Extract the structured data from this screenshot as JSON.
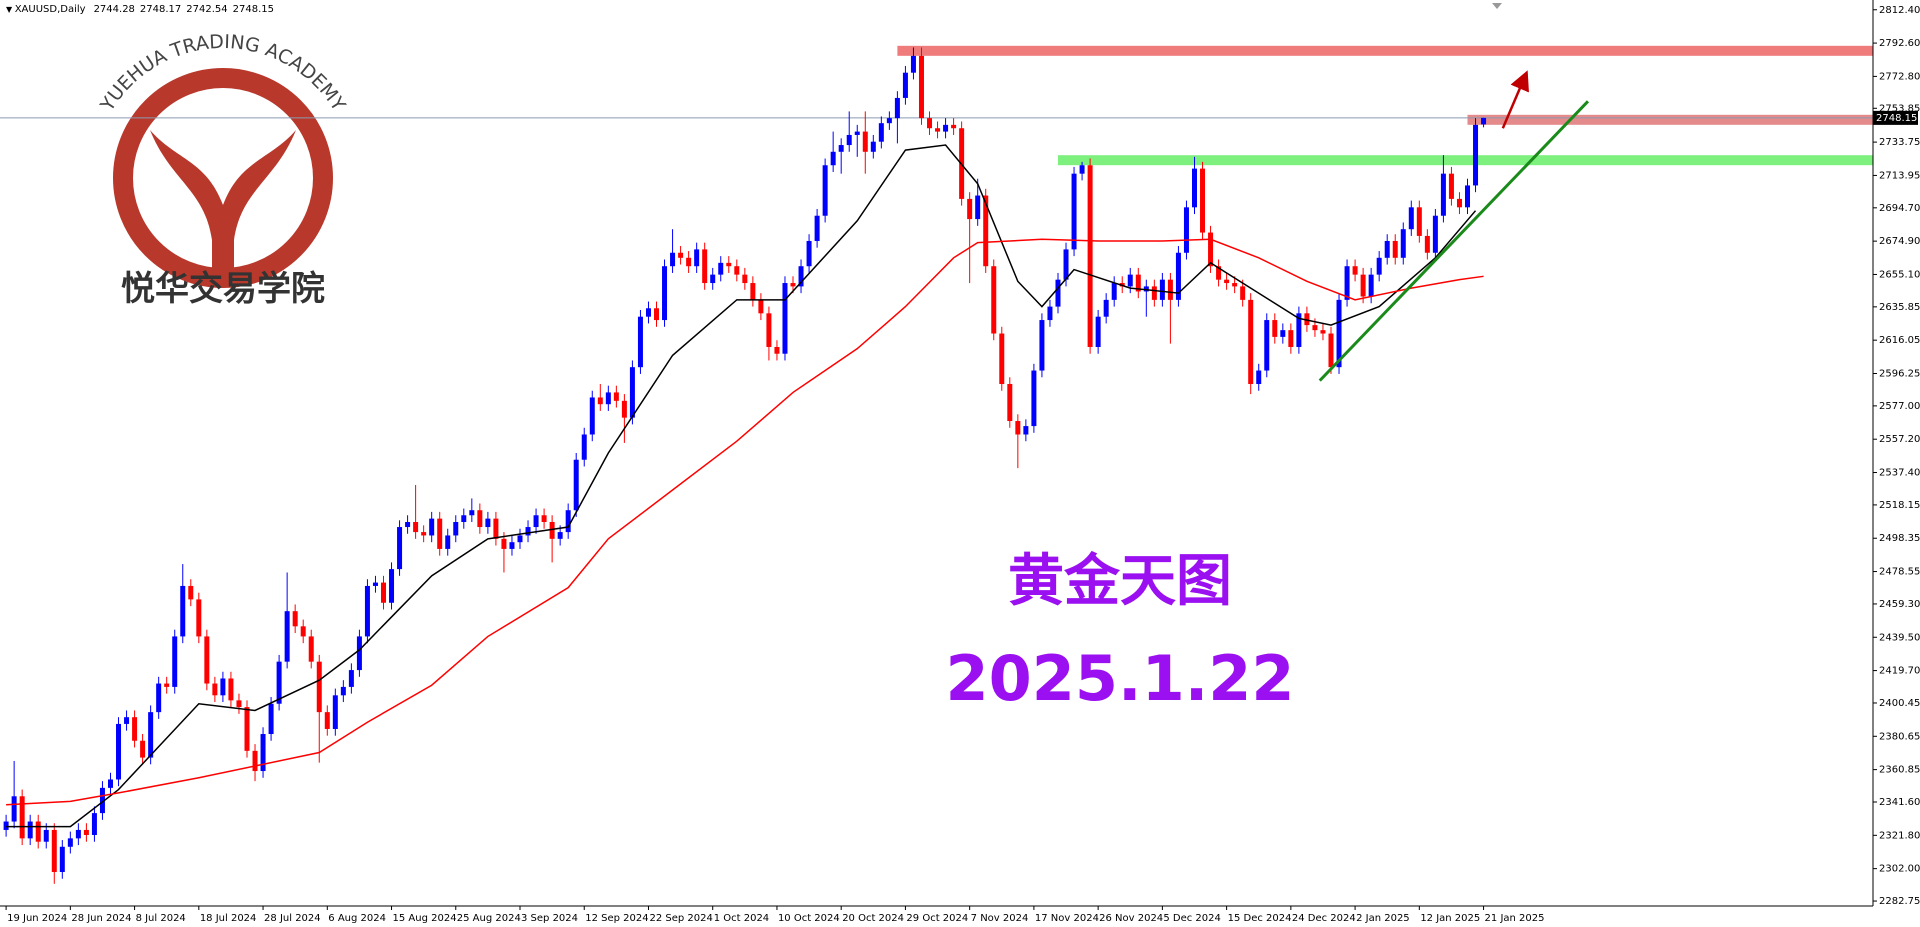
{
  "chart_data": {
    "type": "candlestick",
    "title": "XAUUSD,Daily",
    "up_color": "#0000ff",
    "down_color": "#ff0000",
    "ylim": [
      2279.8,
      2818.2
    ],
    "xlim": [
      -0.76,
      232.5
    ],
    "yticks": [
      {
        "value": 2812.4,
        "label": "2812.40"
      },
      {
        "value": 2792.6,
        "label": "2792.60"
      },
      {
        "value": 2772.8,
        "label": "2772.80"
      },
      2753.85,
      2733.75,
      2713.95,
      {
        "value": 2694.7,
        "label": "2694.70"
      },
      {
        "value": 2674.9,
        "label": "2674.90"
      },
      {
        "value": 2655.1,
        "label": "2655.10"
      },
      2635.85,
      2616.05,
      2596.25,
      {
        "value": 2577.0,
        "label": "2577.00"
      },
      {
        "value": 2557.2,
        "label": "2557.20"
      },
      {
        "value": 2537.4,
        "label": "2537.40"
      },
      2518.15,
      2498.35,
      2478.55,
      {
        "value": 2459.3,
        "label": "2459.30"
      },
      {
        "value": 2439.5,
        "label": "2439.50"
      },
      {
        "value": 2419.7,
        "label": "2419.70"
      },
      2400.45,
      2380.65,
      2360.85,
      {
        "value": 2341.6,
        "label": "2341.60"
      },
      {
        "value": 2321.8,
        "label": "2321.80"
      },
      {
        "value": 2302.0,
        "label": "2302.00"
      },
      2282.75
    ],
    "xticks": [
      {
        "value": 0,
        "label": "19 Jun 2024"
      },
      {
        "value": 8,
        "label": "28 Jun 2024"
      },
      {
        "value": 16,
        "label": "8 Jul 2024"
      },
      {
        "value": 24,
        "label": "18 Jul 2024"
      },
      {
        "value": 32,
        "label": "28 Jul 2024"
      },
      {
        "value": 40,
        "label": "6 Aug 2024"
      },
      {
        "value": 48,
        "label": "15 Aug 2024"
      },
      {
        "value": 56,
        "label": "25 Aug 2024"
      },
      {
        "value": 64,
        "label": "3 Sep 2024"
      },
      {
        "value": 72,
        "label": "12 Sep 2024"
      },
      {
        "value": 80,
        "label": "22 Sep 2024"
      },
      {
        "value": 88,
        "label": "1 Oct 2024"
      },
      {
        "value": 96,
        "label": "10 Oct 2024"
      },
      {
        "value": 104,
        "label": "20 Oct 2024"
      },
      {
        "value": 112,
        "label": "29 Oct 2024"
      },
      {
        "value": 120,
        "label": "7 Nov 2024"
      },
      {
        "value": 128,
        "label": "17 Nov 2024"
      },
      {
        "value": 136,
        "label": "26 Nov 2024"
      },
      {
        "value": 144,
        "label": "5 Dec 2024"
      },
      {
        "value": 152,
        "label": "15 Dec 2024"
      },
      {
        "value": 160,
        "label": "24 Dec 2024"
      },
      {
        "value": 168,
        "label": "2 Jan 2025"
      },
      {
        "value": 176,
        "label": "12 Jan 2025"
      },
      {
        "value": 184,
        "label": "21 Jan 2025"
      }
    ],
    "ohlc": [
      [
        2325,
        2334,
        2321,
        2330
      ],
      [
        2330,
        2366,
        2326,
        2345
      ],
      [
        2345,
        2349,
        2316,
        2320
      ],
      [
        2320,
        2334,
        2316,
        2330
      ],
      [
        2330,
        2334,
        2314,
        2318
      ],
      [
        2318,
        2329,
        2314,
        2325
      ],
      [
        2325,
        2329,
        2293,
        2300
      ],
      [
        2300,
        2319,
        2296,
        2315
      ],
      [
        2315,
        2324,
        2311,
        2320
      ],
      [
        2320,
        2329,
        2316,
        2325
      ],
      [
        2325,
        2329,
        2318,
        2322
      ],
      [
        2322,
        2339,
        2318,
        2335
      ],
      [
        2335,
        2354,
        2331,
        2350
      ],
      [
        2350,
        2359,
        2346,
        2355
      ],
      [
        2355,
        2392,
        2351,
        2388
      ],
      [
        2388,
        2396,
        2384,
        2392
      ],
      [
        2392,
        2396,
        2374,
        2378
      ],
      [
        2378,
        2382,
        2364,
        2368
      ],
      [
        2368,
        2399,
        2364,
        2395
      ],
      [
        2395,
        2416,
        2391,
        2412
      ],
      [
        2412,
        2416,
        2406,
        2410
      ],
      [
        2410,
        2444,
        2406,
        2440
      ],
      [
        2440,
        2483,
        2436,
        2470
      ],
      [
        2470,
        2474,
        2458,
        2462
      ],
      [
        2462,
        2466,
        2436,
        2440
      ],
      [
        2440,
        2444,
        2408,
        2412
      ],
      [
        2412,
        2416,
        2401,
        2405
      ],
      [
        2405,
        2419,
        2401,
        2415
      ],
      [
        2415,
        2419,
        2398,
        2402
      ],
      [
        2402,
        2406,
        2394,
        2398
      ],
      [
        2398,
        2402,
        2368,
        2372
      ],
      [
        2372,
        2376,
        2354,
        2360
      ],
      [
        2360,
        2386,
        2356,
        2382
      ],
      [
        2382,
        2404,
        2378,
        2400
      ],
      [
        2400,
        2429,
        2396,
        2425
      ],
      [
        2425,
        2478,
        2421,
        2455
      ],
      [
        2455,
        2459,
        2442,
        2446
      ],
      [
        2446,
        2450,
        2436,
        2440
      ],
      [
        2440,
        2444,
        2421,
        2425
      ],
      [
        2425,
        2429,
        2365,
        2395
      ],
      [
        2395,
        2399,
        2381,
        2385
      ],
      [
        2385,
        2409,
        2381,
        2405
      ],
      [
        2405,
        2414,
        2401,
        2410
      ],
      [
        2410,
        2424,
        2406,
        2420
      ],
      [
        2420,
        2444,
        2416,
        2440
      ],
      [
        2440,
        2474,
        2436,
        2470
      ],
      [
        2470,
        2476,
        2466,
        2472
      ],
      [
        2472,
        2476,
        2456,
        2460
      ],
      [
        2460,
        2484,
        2456,
        2480
      ],
      [
        2480,
        2509,
        2476,
        2505
      ],
      [
        2505,
        2512,
        2501,
        2508
      ],
      [
        2508,
        2530,
        2498,
        2502
      ],
      [
        2502,
        2506,
        2496,
        2500
      ],
      [
        2500,
        2514,
        2496,
        2510
      ],
      [
        2510,
        2514,
        2488,
        2492
      ],
      [
        2492,
        2504,
        2488,
        2500
      ],
      [
        2500,
        2512,
        2496,
        2508
      ],
      [
        2508,
        2516,
        2504,
        2512
      ],
      [
        2512,
        2522,
        2508,
        2515
      ],
      [
        2515,
        2519,
        2501,
        2505
      ],
      [
        2505,
        2514,
        2501,
        2510
      ],
      [
        2510,
        2514,
        2494,
        2498
      ],
      [
        2498,
        2502,
        2478,
        2492
      ],
      [
        2492,
        2500,
        2488,
        2496
      ],
      [
        2496,
        2504,
        2492,
        2500
      ],
      [
        2500,
        2509,
        2496,
        2505
      ],
      [
        2505,
        2516,
        2501,
        2512
      ],
      [
        2512,
        2516,
        2504,
        2508
      ],
      [
        2508,
        2512,
        2484,
        2498
      ],
      [
        2498,
        2506,
        2494,
        2502
      ],
      [
        2502,
        2519,
        2498,
        2515
      ],
      [
        2515,
        2549,
        2511,
        2545
      ],
      [
        2545,
        2564,
        2541,
        2560
      ],
      [
        2560,
        2586,
        2556,
        2582
      ],
      [
        2582,
        2590,
        2574,
        2578
      ],
      [
        2578,
        2589,
        2574,
        2585
      ],
      [
        2585,
        2589,
        2576,
        2580
      ],
      [
        2580,
        2584,
        2555,
        2570
      ],
      [
        2570,
        2604,
        2566,
        2600
      ],
      [
        2600,
        2634,
        2596,
        2630
      ],
      [
        2630,
        2639,
        2626,
        2635
      ],
      [
        2635,
        2639,
        2624,
        2628
      ],
      [
        2628,
        2664,
        2624,
        2660
      ],
      [
        2660,
        2682,
        2656,
        2668
      ],
      [
        2668,
        2672,
        2661,
        2665
      ],
      [
        2665,
        2669,
        2656,
        2660
      ],
      [
        2660,
        2674,
        2656,
        2670
      ],
      [
        2670,
        2674,
        2646,
        2650
      ],
      [
        2650,
        2659,
        2646,
        2655
      ],
      [
        2655,
        2666,
        2651,
        2662
      ],
      [
        2662,
        2666,
        2656,
        2660
      ],
      [
        2660,
        2664,
        2651,
        2655
      ],
      [
        2655,
        2659,
        2646,
        2650
      ],
      [
        2650,
        2654,
        2636,
        2640
      ],
      [
        2640,
        2644,
        2628,
        2632
      ],
      [
        2632,
        2636,
        2604,
        2612
      ],
      [
        2612,
        2616,
        2604,
        2608
      ],
      [
        2608,
        2654,
        2604,
        2650
      ],
      [
        2650,
        2654,
        2644,
        2648
      ],
      [
        2648,
        2664,
        2644,
        2660
      ],
      [
        2660,
        2679,
        2656,
        2675
      ],
      [
        2675,
        2694,
        2671,
        2690
      ],
      [
        2690,
        2724,
        2686,
        2720
      ],
      [
        2720,
        2740,
        2716,
        2728
      ],
      [
        2728,
        2736,
        2715,
        2732
      ],
      [
        2732,
        2752,
        2728,
        2738
      ],
      [
        2738,
        2744,
        2725,
        2740
      ],
      [
        2740,
        2752,
        2715,
        2728
      ],
      [
        2728,
        2738,
        2724,
        2734
      ],
      [
        2734,
        2749,
        2730,
        2745
      ],
      [
        2745,
        2752,
        2741,
        2748
      ],
      [
        2748,
        2764,
        2733,
        2760
      ],
      [
        2760,
        2779,
        2756,
        2775
      ],
      [
        2775,
        2790,
        2771,
        2785
      ],
      [
        2785,
        2790,
        2744,
        2748
      ],
      [
        2748,
        2752,
        2738,
        2742
      ],
      [
        2742,
        2746,
        2736,
        2740
      ],
      [
        2740,
        2748,
        2736,
        2744
      ],
      [
        2744,
        2748,
        2738,
        2742
      ],
      [
        2742,
        2746,
        2696,
        2700
      ],
      [
        2700,
        2704,
        2650,
        2688
      ],
      [
        2688,
        2712,
        2684,
        2702
      ],
      [
        2702,
        2706,
        2656,
        2660
      ],
      [
        2660,
        2664,
        2616,
        2620
      ],
      [
        2620,
        2624,
        2586,
        2590
      ],
      [
        2590,
        2594,
        2564,
        2568
      ],
      [
        2568,
        2572,
        2540,
        2560
      ],
      [
        2560,
        2569,
        2556,
        2565
      ],
      [
        2565,
        2602,
        2561,
        2598
      ],
      [
        2598,
        2632,
        2594,
        2628
      ],
      [
        2628,
        2640,
        2624,
        2636
      ],
      [
        2636,
        2656,
        2632,
        2652
      ],
      [
        2652,
        2674,
        2648,
        2670
      ],
      [
        2670,
        2719,
        2666,
        2715
      ],
      [
        2715,
        2722,
        2711,
        2720
      ],
      [
        2720,
        2724,
        2608,
        2612
      ],
      [
        2612,
        2634,
        2608,
        2630
      ],
      [
        2630,
        2644,
        2626,
        2640
      ],
      [
        2640,
        2654,
        2636,
        2650
      ],
      [
        2650,
        2654,
        2644,
        2648
      ],
      [
        2648,
        2659,
        2644,
        2655
      ],
      [
        2655,
        2659,
        2641,
        2645
      ],
      [
        2645,
        2652,
        2630,
        2648
      ],
      [
        2648,
        2652,
        2636,
        2640
      ],
      [
        2640,
        2656,
        2636,
        2652
      ],
      [
        2652,
        2656,
        2614,
        2640
      ],
      [
        2640,
        2672,
        2636,
        2668
      ],
      [
        2668,
        2699,
        2664,
        2695
      ],
      [
        2695,
        2725,
        2691,
        2718
      ],
      [
        2718,
        2722,
        2676,
        2680
      ],
      [
        2680,
        2684,
        2656,
        2660
      ],
      [
        2660,
        2664,
        2648,
        2652
      ],
      [
        2652,
        2656,
        2646,
        2650
      ],
      [
        2650,
        2654,
        2644,
        2648
      ],
      [
        2648,
        2652,
        2636,
        2640
      ],
      [
        2640,
        2644,
        2584,
        2590
      ],
      [
        2590,
        2602,
        2586,
        2598
      ],
      [
        2598,
        2632,
        2594,
        2628
      ],
      [
        2628,
        2632,
        2614,
        2618
      ],
      [
        2618,
        2626,
        2614,
        2622
      ],
      [
        2622,
        2626,
        2608,
        2612
      ],
      [
        2612,
        2636,
        2608,
        2632
      ],
      [
        2632,
        2636,
        2621,
        2625
      ],
      [
        2625,
        2629,
        2618,
        2622
      ],
      [
        2622,
        2626,
        2616,
        2620
      ],
      [
        2620,
        2624,
        2596,
        2600
      ],
      [
        2600,
        2644,
        2596,
        2640
      ],
      [
        2640,
        2664,
        2636,
        2660
      ],
      [
        2660,
        2664,
        2651,
        2655
      ],
      [
        2655,
        2659,
        2638,
        2642
      ],
      [
        2642,
        2659,
        2638,
        2655
      ],
      [
        2655,
        2669,
        2651,
        2665
      ],
      [
        2665,
        2679,
        2661,
        2675
      ],
      [
        2675,
        2679,
        2661,
        2665
      ],
      [
        2665,
        2686,
        2661,
        2682
      ],
      [
        2682,
        2699,
        2678,
        2695
      ],
      [
        2695,
        2699,
        2674,
        2678
      ],
      [
        2678,
        2682,
        2664,
        2668
      ],
      [
        2668,
        2694,
        2664,
        2690
      ],
      [
        2690,
        2726,
        2686,
        2715
      ],
      [
        2715,
        2719,
        2696,
        2700
      ],
      [
        2700,
        2704,
        2691,
        2695
      ],
      [
        2695,
        2712,
        2691,
        2708
      ],
      [
        2708,
        2748,
        2704,
        2744
      ],
      [
        2744.28,
        2748.17,
        2742.54,
        2748.15
      ]
    ],
    "moving_averages": [
      {
        "color": "#000000",
        "x": [
          0,
          8,
          14,
          24,
          31,
          39,
          44,
          53,
          60,
          70,
          75,
          83,
          91,
          97,
          106,
          112,
          117,
          121,
          126,
          129,
          133,
          140,
          146,
          150,
          155,
          161,
          165,
          171,
          178,
          183
        ],
        "values": [
          2327,
          2327,
          2349,
          2400,
          2396,
          2414,
          2432,
          2476,
          2498,
          2505,
          2549,
          2607,
          2640,
          2640,
          2687,
          2729,
          2732,
          2709,
          2651,
          2636,
          2658,
          2647,
          2644,
          2662,
          2647,
          2629,
          2625,
          2636,
          2665,
          2693
        ]
      },
      {
        "color": "#ff0000",
        "x": [
          0,
          8,
          14,
          24,
          31,
          39,
          45,
          53,
          60,
          70,
          75,
          83,
          91,
          98,
          106,
          112,
          118,
          121,
          129,
          136,
          144,
          150,
          156,
          162,
          168,
          175,
          181,
          184
        ],
        "values": [
          2340,
          2342,
          2347,
          2356,
          2363,
          2371,
          2389,
          2411,
          2440,
          2469,
          2498,
          2527,
          2556,
          2585,
          2611,
          2636,
          2665,
          2674,
          2676,
          2675,
          2675,
          2676,
          2665,
          2651,
          2640,
          2647,
          2652,
          2654
        ]
      }
    ],
    "levels": [
      {
        "value": 2788,
        "x_start": 111,
        "color": "#f07b7b"
      },
      {
        "value": 2723,
        "x_start": 131,
        "color": "#7ef07e"
      },
      {
        "value": 2747,
        "x_start": 182,
        "color": "#e48a8a"
      }
    ],
    "trendline": {
      "color": "#1a8a1a",
      "x": [
        163.6,
        197
      ],
      "values": [
        2592,
        2758
      ]
    },
    "arrow": {
      "color": "#c00000",
      "x": [
        186.4,
        189
      ],
      "values": [
        2742,
        2771
      ]
    }
  },
  "logo": {
    "text": "YUEHUA TRADING ACADEMY",
    "chinese": "悦华交易学院"
  },
  "watermark": {
    "title": "黄金天图",
    "date": "2025.1.22"
  }
}
